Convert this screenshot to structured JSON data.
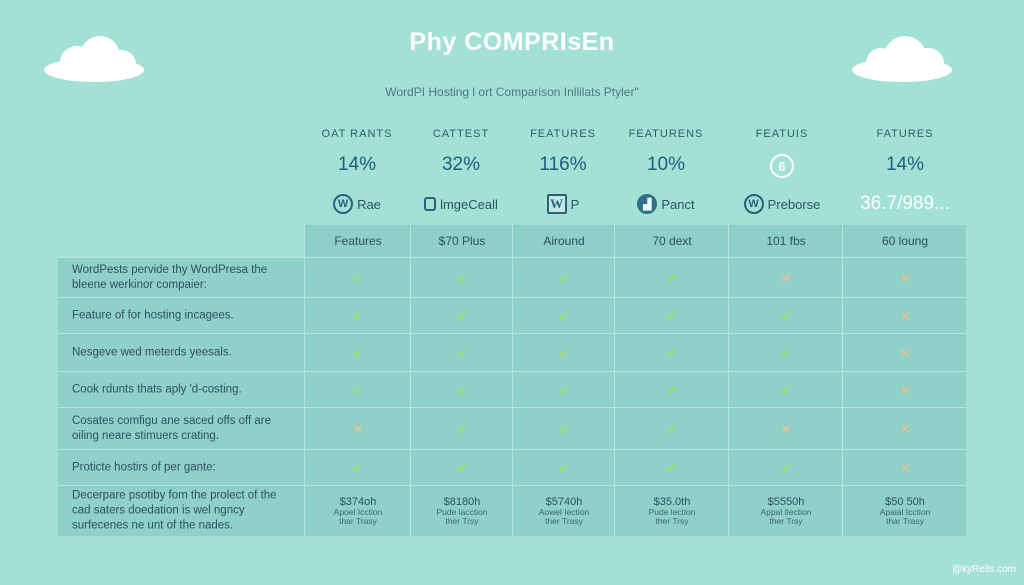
{
  "title": "Phy COMPRIsEn",
  "subtitle": "WordPI Hosting l ort Comparison Inllilats Ptyler\"",
  "columns": [
    {
      "label": "OAT RANTS",
      "pct": "14%",
      "brand_icon": "wordpress-icon",
      "brand_glyph": "W",
      "brand_text": "Rae"
    },
    {
      "label": "CATTEST",
      "pct": "32%",
      "brand_icon": "hosting-logo-icon",
      "brand_glyph": "",
      "brand_text": "lmgeCeall"
    },
    {
      "label": "FEATURES",
      "pct": "116%",
      "brand_icon": "wordpress-square-icon",
      "brand_glyph": "W",
      "brand_text": "P"
    },
    {
      "label": "FEATURENS",
      "pct": "10%",
      "brand_icon": "lock-badge-icon",
      "brand_glyph": "▟",
      "brand_text": "Panct"
    },
    {
      "label": "FEATUIS",
      "pct": "",
      "pct_badge": "6",
      "brand_icon": "wordpress-icon",
      "brand_glyph": "W",
      "brand_text": "Preborse"
    },
    {
      "label": "FATURES",
      "pct": "14%",
      "brand_icon": "",
      "brand_glyph": "",
      "brand_text": "36.7/989..."
    }
  ],
  "header_cells": [
    "Features",
    "$70 Plus",
    "Airound",
    "70 dext",
    "101 fbs",
    "60 loung"
  ],
  "rows": [
    {
      "feature": "WordPests pervide thy WordPresa the bleene werkinor compaier:",
      "marks": [
        "ok",
        "ok",
        "ok",
        "ok",
        "no",
        "no"
      ]
    },
    {
      "feature": "Feature of for hosting incagees.",
      "marks": [
        "ok",
        "ok",
        "ok",
        "ok",
        "ok",
        "no"
      ]
    },
    {
      "feature": "Nesgeve wed meterds yeesals.",
      "marks": [
        "ok",
        "ok",
        "ok",
        "ok",
        "ok",
        "no"
      ]
    },
    {
      "feature": "Cook rdunts thats aply 'd-costing.",
      "marks": [
        "ok",
        "ok",
        "ok",
        "ok",
        "ok",
        "no"
      ]
    },
    {
      "feature": "Cosates comfigu ane saced offs off are oiling neare stimuers crating.",
      "marks": [
        "no",
        "ok",
        "ok",
        "ok",
        "no",
        "no"
      ]
    },
    {
      "feature": "Proticte hostirs of per gante:",
      "marks": [
        "ok",
        "ok",
        "ok",
        "ok",
        "ok",
        "no"
      ]
    }
  ],
  "price_row": {
    "feature": "Decerpare psotiby fom the prolect of the cad saters doedation is wel ngncy surfecenes ne unt of the nades.",
    "prices": [
      {
        "price": "$374oh",
        "sub1": "Apoel Icction",
        "sub2": "thar Trasy"
      },
      {
        "price": "$8180h",
        "sub1": "Pude lacction",
        "sub2": "ther Trsy"
      },
      {
        "price": "$5740h",
        "sub1": "Aowel Iection",
        "sub2": "ther Trasy"
      },
      {
        "price": "$35.0th",
        "sub1": "Pude lection",
        "sub2": "ther Trsy"
      },
      {
        "price": "$5550h",
        "sub1": "Appal Ilection",
        "sub2": "ther Trsy"
      },
      {
        "price": "$50 50h",
        "sub1": "Apaial Icction",
        "sub2": "thar Trasy"
      }
    ]
  },
  "marks": {
    "ok": "✔",
    "no": "✕"
  },
  "colors": {
    "background": "#a3e0d6",
    "ok": "#9ee06a",
    "no": "#eec08e",
    "title": "#ffffff"
  },
  "watermark": "@kyRells.com"
}
